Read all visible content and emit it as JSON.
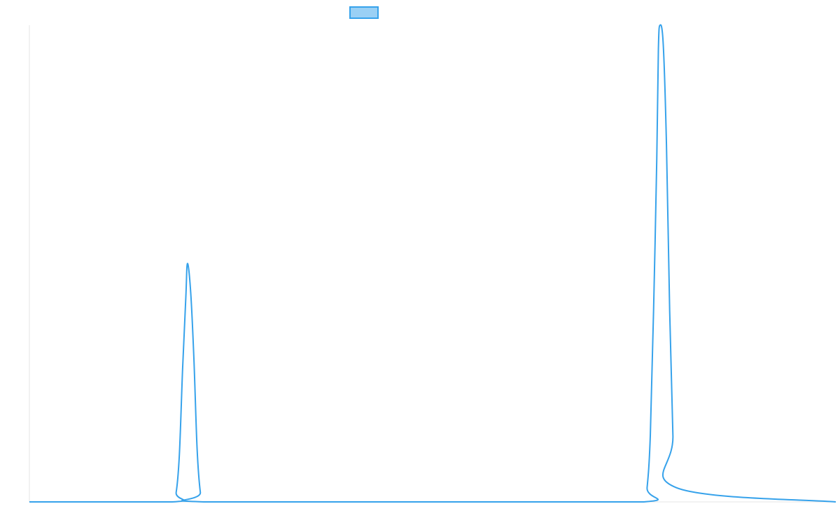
{
  "chart_data": {
    "type": "line",
    "title": "",
    "xlabel": "",
    "ylabel": "",
    "legend": {
      "placement": "top-center",
      "entries": [
        {
          "name": "",
          "color": "#36a2eb",
          "fill": "#9ad0f5"
        }
      ]
    },
    "grid": false,
    "xlim": [
      0,
      100
    ],
    "ylim": [
      0,
      100
    ],
    "series": [
      {
        "name": "",
        "color": "#36a2eb",
        "x": [
          0,
          17.7,
          18.2,
          18.6,
          19.0,
          19.4,
          19.6,
          20.0,
          20.4,
          20.8,
          21.2,
          21.6,
          55,
          76.2,
          76.6,
          77.0,
          77.4,
          77.8,
          78.0,
          78.2,
          78.6,
          79.0,
          79.4,
          79.8,
          80.2,
          100
        ],
        "y": [
          0,
          0,
          2.0,
          10.0,
          28.0,
          43.0,
          50.0,
          44.0,
          30.0,
          11.0,
          2.0,
          0,
          0,
          0,
          3.0,
          14.0,
          40.0,
          72.0,
          95.0,
          100.0,
          96.0,
          75.0,
          40.0,
          14.0,
          3.0,
          0
        ]
      }
    ]
  }
}
